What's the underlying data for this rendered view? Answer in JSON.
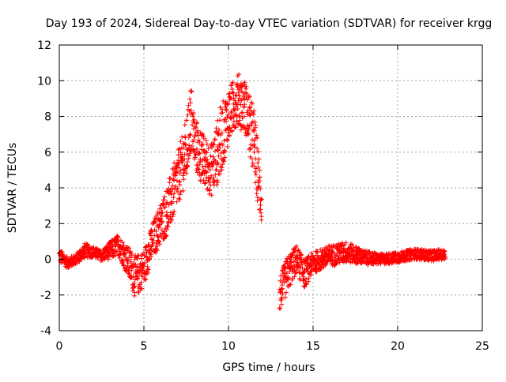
{
  "chart_data": {
    "type": "scatter",
    "title": "Day 193 of 2024, Sidereal Day-to-day VTEC variation (SDTVAR) for receiver krgg",
    "xlabel": "GPS time / hours",
    "ylabel": "SDTVAR / TECUs",
    "xlim": [
      0,
      25
    ],
    "ylim": [
      -4,
      12
    ],
    "xticks": [
      0,
      5,
      10,
      15,
      20,
      25
    ],
    "yticks": [
      -4,
      -2,
      0,
      2,
      4,
      6,
      8,
      10,
      12
    ],
    "grid": true,
    "marker": "+",
    "series": [
      {
        "name": "SDTVAR",
        "color": "#ff0000",
        "profile_x": [
          0.0,
          0.5,
          1.0,
          1.5,
          2.0,
          2.5,
          3.0,
          3.5,
          4.0,
          4.5,
          5.0,
          5.5,
          6.0,
          6.5,
          7.0,
          7.5,
          7.8,
          8.0,
          8.5,
          9.0,
          9.5,
          10.0,
          10.5,
          11.0,
          11.5,
          11.9,
          13.0,
          13.5,
          14.0,
          14.5,
          15.0,
          16.0,
          17.0,
          18.0,
          19.0,
          20.0,
          21.0,
          22.0,
          22.8
        ],
        "profile_y": [
          0.2,
          -0.2,
          0.0,
          0.5,
          0.4,
          0.2,
          0.5,
          0.8,
          0.0,
          -1.0,
          -0.5,
          1.0,
          2.0,
          3.0,
          4.5,
          6.0,
          8.0,
          6.5,
          5.5,
          5.0,
          6.5,
          8.0,
          9.0,
          8.5,
          6.5,
          3.5,
          -2.0,
          -0.8,
          0.0,
          -0.8,
          -0.2,
          0.2,
          0.4,
          0.1,
          0.0,
          0.1,
          0.3,
          0.2,
          0.3
        ],
        "spread": [
          0.4,
          0.3,
          0.3,
          0.4,
          0.3,
          0.3,
          0.5,
          0.6,
          0.8,
          1.2,
          1.0,
          1.0,
          1.2,
          1.5,
          1.5,
          1.8,
          2.0,
          1.5,
          1.5,
          1.5,
          2.0,
          1.5,
          1.5,
          1.5,
          2.0,
          1.5,
          1.0,
          1.0,
          0.8,
          0.8,
          0.6,
          0.6,
          0.6,
          0.4,
          0.3,
          0.3,
          0.3,
          0.3,
          0.3
        ],
        "gaps": [
          [
            11.95,
            13.0
          ]
        ]
      }
    ]
  }
}
